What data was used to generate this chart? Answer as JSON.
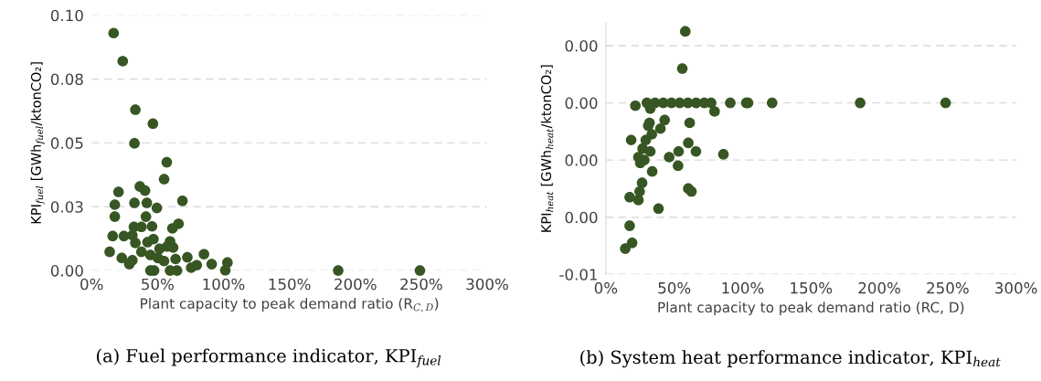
{
  "chart_data": [
    {
      "type": "scatter",
      "xlabel": "Plant capacity to peak demand ratio (R$_{C,D}$)",
      "ylabel": "KPI$_{fuel}$ [GWh$_{fuel}$/ktonCO₂]",
      "annotations": [
        "(a) Fuel performance indicator, KPI$_{fuel}$"
      ],
      "xlim": [
        0,
        300
      ],
      "xticks": [
        {
          "value": 0,
          "label": "0%"
        },
        {
          "value": 50,
          "label": "50%"
        },
        {
          "value": 100,
          "label": "100%"
        },
        {
          "value": 150,
          "label": "150%"
        },
        {
          "value": 200,
          "label": "200%"
        },
        {
          "value": 250,
          "label": "250%"
        },
        {
          "value": 300,
          "label": "300%"
        }
      ],
      "ylim": [
        0,
        0.1
      ],
      "yticks": [
        {
          "value": 0,
          "label": "0.00"
        },
        {
          "value": 0.025,
          "label": "0.03"
        },
        {
          "value": 0.05,
          "label": "0.05"
        },
        {
          "value": 0.075,
          "label": "0.08"
        },
        {
          "value": 0.1,
          "label": "0.10"
        }
      ],
      "grid": "y",
      "marker": "circle",
      "legend": false,
      "series": [
        {
          "color": "#375623",
          "x": [
            16.7,
            23.6,
            33.2,
            46.5,
            32.5,
            57,
            55,
            20.4,
            36.6,
            40.5,
            17.6,
            32.5,
            41.9,
            49.5,
            68.9,
            17.6,
            41.2,
            65.9,
            61.3,
            32.1,
            37.8,
            45.8,
            16,
            24.5,
            30.9,
            33.2,
            42.4,
            46.9,
            59.5,
            37.8,
            13.7,
            51.5,
            57.2,
            61.8,
            44.6,
            50.3,
            54.9,
            63.7,
            22.9,
            30.9,
            28.6,
            72.6,
            85.2,
            75.5,
            79.7,
            91.1,
            103,
            101.4,
            44.6,
            47.4,
            59.5,
            64.8,
            187,
            249
          ],
          "values": [
            0.093,
            0.082,
            0.063,
            0.0575,
            0.0498,
            0.0424,
            0.0358,
            0.0308,
            0.0329,
            0.0313,
            0.0258,
            0.0265,
            0.0265,
            0.0245,
            0.0273,
            0.0211,
            0.0211,
            0.0183,
            0.0165,
            0.0171,
            0.0171,
            0.0173,
            0.0135,
            0.0135,
            0.0138,
            0.0108,
            0.0111,
            0.0123,
            0.0114,
            0.0073,
            0.0073,
            0.0085,
            0.0094,
            0.009,
            0.0061,
            0.0049,
            0.0037,
            0.0045,
            0.0049,
            0.004,
            0.0025,
            0.0052,
            0.0064,
            0.0011,
            0.0021,
            0.0025,
            0.0031,
            0.0001,
            0,
            0,
            0,
            0,
            0,
            0
          ]
        }
      ]
    },
    {
      "type": "scatter",
      "xlabel": "Plant capacity to peak demand ratio (RC, D)",
      "ylabel": "KPI$_{heat}$ [GWh$_{heat}$/ktonCO₂]",
      "annotations": [
        "(b) System heat performance indicator, KPI$_{heat}$"
      ],
      "xlim": [
        0,
        300
      ],
      "xticks": [
        {
          "value": 0,
          "label": "0%"
        },
        {
          "value": 50,
          "label": "50%"
        },
        {
          "value": 100,
          "label": "100%"
        },
        {
          "value": 150,
          "label": "150%"
        },
        {
          "value": 200,
          "label": "200%"
        },
        {
          "value": 250,
          "label": "250%"
        },
        {
          "value": 300,
          "label": "300%"
        }
      ],
      "ylim": [
        -0.006,
        0.0028
      ],
      "yticks": [
        {
          "value": -0.006,
          "label": "-0.01"
        },
        {
          "value": -0.004,
          "label": "0.00"
        },
        {
          "value": -0.002,
          "label": "0.00"
        },
        {
          "value": 0,
          "label": "0.00"
        },
        {
          "value": 0.002,
          "label": "0.00"
        }
      ],
      "grid": "y",
      "marker": "circle",
      "legend": false,
      "series": [
        {
          "color": "#375623",
          "x": [
            58.1,
            55.9,
            21.6,
            30,
            36,
            42,
            48,
            54,
            60,
            66,
            72,
            77,
            91,
            102.7,
            104,
            121.6,
            186,
            248.5,
            79.5,
            32.5,
            43,
            31.9,
            31,
            61.3,
            39.9,
            18.5,
            33.6,
            29.2,
            26.9,
            32.5,
            60.3,
            53.2,
            65.9,
            86,
            23.8,
            28.1,
            25.2,
            46.3,
            52.8,
            33.9,
            26.5,
            24.7,
            17.4,
            23.8,
            60.3,
            62.6,
            38.5,
            17.4,
            19.2,
            14.2
          ],
          "values": [
            0.0025,
            0.0012,
            -0.0001,
            0,
            0,
            0,
            0,
            0,
            0,
            0,
            0,
            0,
            0,
            0,
            0,
            0,
            0,
            0,
            -0.0003,
            -0.0002,
            -0.0006,
            -0.0007,
            -0.0008,
            -0.0007,
            -0.0009,
            -0.0013,
            -0.0011,
            -0.0013,
            -0.0016,
            -0.0017,
            -0.0014,
            -0.0017,
            -0.0017,
            -0.0018,
            -0.0019,
            -0.002,
            -0.0021,
            -0.0019,
            -0.0022,
            -0.0024,
            -0.0028,
            -0.0031,
            -0.0033,
            -0.0034,
            -0.003,
            -0.0031,
            -0.0037,
            -0.0043,
            -0.0049,
            -0.0051
          ]
        }
      ]
    }
  ]
}
